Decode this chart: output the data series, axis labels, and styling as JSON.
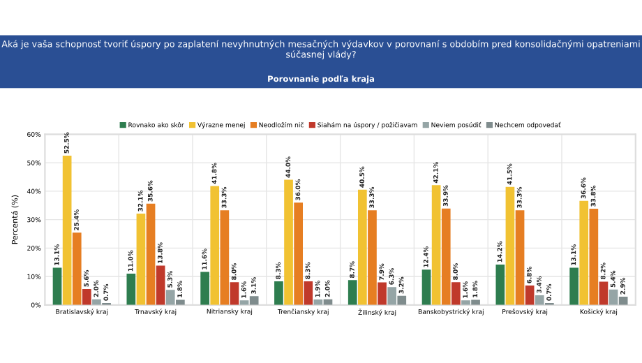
{
  "chart_data": {
    "type": "bar",
    "title": "Aká je vaša schopnosť tvoriť úspory po zaplatení nevyhnutných mesačných výdavkov v porovnaní s obdobím pred konsolidačnými opatreniami súčasnej vlády?",
    "subtitle": "Porovnanie podľa kraja",
    "ylabel": "Percentá (%)",
    "categories": [
      "Bratislavský kraj",
      "Trnavský kraj",
      "Nitriansky kraj",
      "Trenčiansky kraj",
      "Žilinský kraj",
      "Banskobystrický kraj",
      "Prešovský kraj",
      "Košický kraj"
    ],
    "series": [
      {
        "name": "Rovnako ako skôr",
        "color": "#2e7d4f",
        "values": [
          13.1,
          11.0,
          11.6,
          8.3,
          8.7,
          12.4,
          14.2,
          13.1
        ],
        "value_labels": [
          "13.1%",
          "11.0%",
          "11.6%",
          "8.3%",
          "8.7%",
          "12.4%",
          "14.2%",
          "13.1%"
        ]
      },
      {
        "name": "Výrazne menej",
        "color": "#f1c232",
        "values": [
          52.5,
          32.1,
          41.8,
          44.0,
          40.5,
          42.1,
          41.5,
          36.6
        ],
        "value_labels": [
          "52.5%",
          "32.1%",
          "41.8%",
          "44.0%",
          "40.5%",
          "42.1%",
          "41.5%",
          "36.6%"
        ]
      },
      {
        "name": "Neodložím nič",
        "color": "#e67e22",
        "values": [
          25.4,
          35.6,
          33.3,
          36.0,
          33.3,
          33.9,
          33.3,
          33.8
        ],
        "value_labels": [
          "25.4%",
          "35.6%",
          "33.3%",
          "36.0%",
          "33.3%",
          "33.9%",
          "33.3%",
          "33.8%"
        ]
      },
      {
        "name": "Siahám na úspory / požičiavam",
        "color": "#c0392b",
        "values": [
          5.6,
          13.8,
          8.0,
          8.3,
          7.9,
          8.0,
          6.8,
          8.2
        ],
        "value_labels": [
          "5.6%",
          "13.8%",
          "8.0%",
          "8.3%",
          "7.9%",
          "8.0%",
          "6.8%",
          "8.2%"
        ]
      },
      {
        "name": "Neviem posúdiť",
        "color": "#95a5a6",
        "values": [
          2.0,
          5.3,
          1.6,
          1.9,
          6.3,
          1.6,
          3.4,
          5.4
        ],
        "value_labels": [
          "2.0%",
          "5.3%",
          "1.6%",
          "1.9%",
          "6.3%",
          "1.6%",
          "3.4%",
          "5.4%"
        ]
      },
      {
        "name": "Nechcem odpovedať",
        "color": "#7f8c8d",
        "values": [
          0.7,
          1.8,
          3.1,
          2.0,
          3.2,
          1.8,
          0.7,
          2.9
        ],
        "value_labels": [
          "0.7%",
          "1.8%",
          "3.1%",
          "2.0%",
          "3.2%",
          "1.8%",
          "0.7%",
          "2.9%"
        ]
      }
    ],
    "ylim": [
      0,
      60
    ],
    "yticks": [
      {
        "value": 0,
        "label": "0%"
      },
      {
        "value": 10,
        "label": "10%"
      },
      {
        "value": 20,
        "label": "20%"
      },
      {
        "value": 30,
        "label": "30%"
      },
      {
        "value": 40,
        "label": "40%"
      },
      {
        "value": 50,
        "label": "50%"
      },
      {
        "value": 60,
        "label": "60%"
      }
    ],
    "grid": true,
    "legend": "top"
  }
}
